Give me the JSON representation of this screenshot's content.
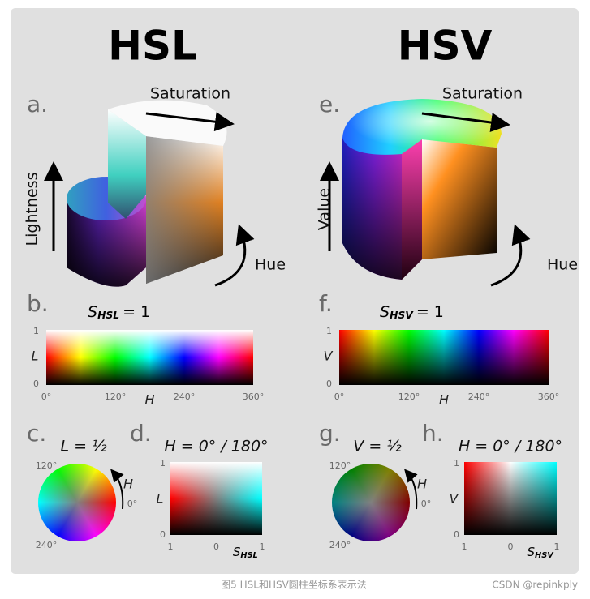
{
  "panels": [
    {
      "title": "HSL",
      "cylinder": {
        "letter": "a.",
        "saturation": "Saturation",
        "axis": "Lightness",
        "hue": "Hue"
      },
      "strip": {
        "letter": "b.",
        "label": {
          "symbol": "S",
          "subscript": "HSL",
          "equals": "= 1"
        },
        "y_axis": "L",
        "y_ticks": [
          "1",
          "0"
        ],
        "x_axis": "H",
        "x_ticks": [
          "0°",
          "120°",
          "240°",
          "360°"
        ]
      },
      "wheel": {
        "letter": "c.",
        "label": "L = ½",
        "ticks": [
          "120°",
          "0°",
          "240°"
        ],
        "arrow_label": "H"
      },
      "slice": {
        "letter": "d.",
        "label": "H = 0° / 180°",
        "y_axis": "L",
        "y_ticks": [
          "1",
          "0"
        ],
        "x_ticks": [
          "1",
          "0",
          "1"
        ],
        "x_axis": {
          "symbol": "S",
          "subscript": "HSL"
        }
      }
    },
    {
      "title": "HSV",
      "cylinder": {
        "letter": "e.",
        "saturation": "Saturation",
        "axis": "Value",
        "hue": "Hue"
      },
      "strip": {
        "letter": "f.",
        "label": {
          "symbol": "S",
          "subscript": "HSV",
          "equals": "= 1"
        },
        "y_axis": "V",
        "y_ticks": [
          "1",
          "0"
        ],
        "x_axis": "H",
        "x_ticks": [
          "0°",
          "120°",
          "240°",
          "360°"
        ]
      },
      "wheel": {
        "letter": "g.",
        "label": "V = ½",
        "ticks": [
          "120°",
          "0°",
          "240°"
        ],
        "arrow_label": "H"
      },
      "slice": {
        "letter": "h.",
        "label": "H = 0° / 180°",
        "y_axis": "V",
        "y_ticks": [
          "1",
          "0"
        ],
        "x_ticks": [
          "1",
          "0",
          "1"
        ],
        "x_axis": {
          "symbol": "S",
          "subscript": "HSV"
        }
      }
    }
  ],
  "footer": {
    "caption": "图5 HSL和HSV圆柱坐标系表示法",
    "credit": "CSDN @repinkply"
  }
}
